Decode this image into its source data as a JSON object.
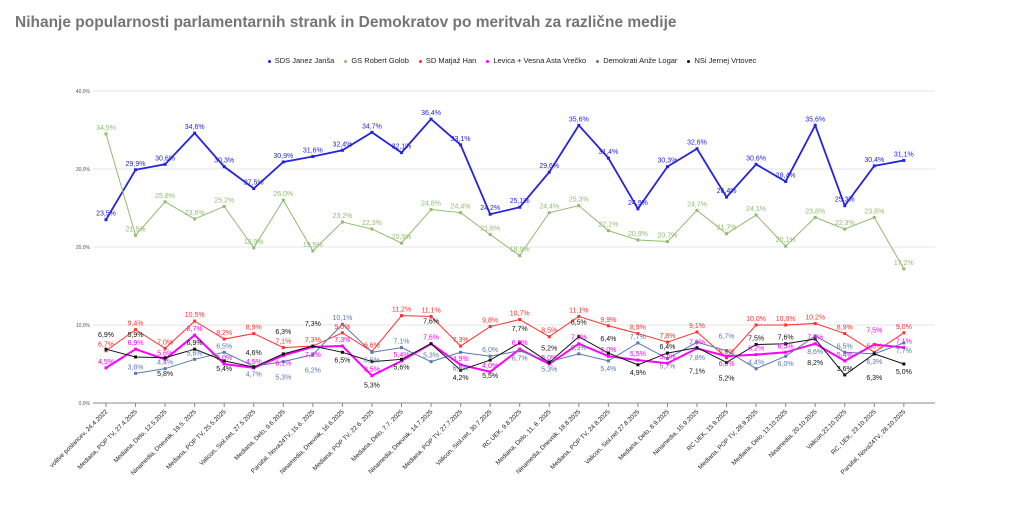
{
  "chart_data": {
    "type": "line",
    "title": "Nihanje popularnosti parlamentarnih strank in Demokratov po meritvah za različne medije",
    "xlabel": "",
    "ylabel": "",
    "ylim": [
      0,
      40
    ],
    "yticks": [
      "0,0%",
      "10,0%",
      "20,0%",
      "30,0%",
      "40,0%"
    ],
    "grid": true,
    "legend_position": "top",
    "categories": [
      "volitve poslancev, 24.4.2022",
      "Mediana, POP TV, 27.4.2025",
      "Mediana, Delo, 12.5.2025",
      "Ninamedia, Dnevnik, 19.5. 2025",
      "Mediana, POP TV, 25.5.2025",
      "Valicon, Siol.net, 27.5.2025",
      "Mediana, Delo, 9.6.2025",
      "Parsifal, Nova24TV, 15.6. 2025",
      "Ninamedia, Dnevnik, 16.6.2025",
      "Mediana, POP TV, 22.6. 2025",
      "Mediana, Delo, 7.7. 2025",
      "Ninamedia, Dnevnik, 14.7.2025",
      "Mediana, POP TV, 27.7.2025",
      "Valicon, Siol.net, 30.7.2025",
      "RC UEK, 9.8.2025",
      "Mediana, Delo, 11. 8. 2025",
      "Ninamedia, Dnevnik, 18.8.2025",
      "Mediana, POP TV, 24.8.2025",
      "Valicon, Siol.net 27.8.2025",
      "Mediana, Delo, 8.9.2025",
      "Ninamedia, 15.9.2025",
      "RC UEK, 15.9.2025",
      "Mediana, POP TV, 28.9.2025",
      "Mediana, Delo, 13.10.2025",
      "Ninamedia, 20.10.2025",
      "Valicon,22.10.2025",
      "RC, UEK, 23.10.2025",
      "Parsifal, Nova24TV, 28.10.2025"
    ],
    "series": [
      {
        "name": "SDS Janez Janša",
        "color": "#2323e0",
        "values": [
          23.5,
          29.9,
          30.6,
          34.6,
          30.3,
          27.5,
          30.9,
          31.6,
          32.4,
          34.7,
          32.1,
          36.4,
          33.1,
          24.2,
          25.1,
          29.6,
          35.6,
          31.4,
          24.9,
          30.3,
          32.6,
          26.4,
          30.6,
          28.4,
          35.6,
          25.3,
          30.4,
          31.1
        ]
      },
      {
        "name": "GS Robert Golob",
        "color": "#8fbc6f",
        "values": [
          34.5,
          21.5,
          25.8,
          23.6,
          25.2,
          19.9,
          26.0,
          19.5,
          23.2,
          22.3,
          20.5,
          24.8,
          24.4,
          21.6,
          18.9,
          24.4,
          25.3,
          22.1,
          20.9,
          20.7,
          24.7,
          21.7,
          24.1,
          20.1,
          23.8,
          22.3,
          23.8,
          17.2
        ]
      },
      {
        "name": "SD Matjaž Han",
        "color": "#ff3030",
        "values": [
          6.7,
          9.4,
          7.0,
          10.5,
          8.2,
          8.9,
          7.1,
          7.3,
          9.0,
          6.6,
          11.2,
          11.1,
          7.3,
          9.8,
          10.7,
          8.5,
          11.1,
          9.9,
          8.9,
          7.8,
          9.1,
          5.8,
          10.0,
          10.0,
          10.2,
          8.9,
          6.5,
          9.0
        ]
      },
      {
        "name": "Levica + Vesna  Asta Vrečko",
        "color": "#ff00ff",
        "values": [
          4.5,
          6.9,
          5.6,
          8.7,
          5.0,
          4.5,
          6.1,
          7.2,
          7.3,
          3.5,
          5.4,
          7.6,
          4.9,
          4.0,
          6.9,
          5.0,
          7.6,
          6.0,
          5.5,
          5.1,
          7.0,
          6.0,
          6.2,
          6.5,
          7.6,
          5.4,
          7.5,
          7.1
        ]
      },
      {
        "name": "Demokrati Anže Logar",
        "color": "#5b77b0",
        "values": [
          null,
          3.8,
          4.4,
          5.6,
          6.5,
          4.7,
          5.3,
          6.2,
          10.1,
          6.5,
          7.1,
          5.3,
          6.5,
          6.0,
          6.7,
          5.3,
          6.3,
          5.4,
          7.7,
          5.7,
          7.8,
          6.7,
          4.4,
          6.0,
          8.6,
          6.5,
          6.3,
          7.7
        ]
      },
      {
        "name": "NSi Jernej Vrtovec",
        "color": "#111111",
        "values": [
          6.9,
          5.9,
          5.8,
          6.9,
          5.4,
          4.6,
          6.3,
          7.3,
          6.5,
          5.3,
          5.6,
          7.6,
          4.2,
          5.5,
          7.7,
          5.2,
          8.5,
          6.4,
          4.9,
          6.4,
          7.1,
          5.2,
          7.5,
          7.6,
          8.2,
          3.6,
          6.3,
          5.0
        ]
      }
    ]
  }
}
